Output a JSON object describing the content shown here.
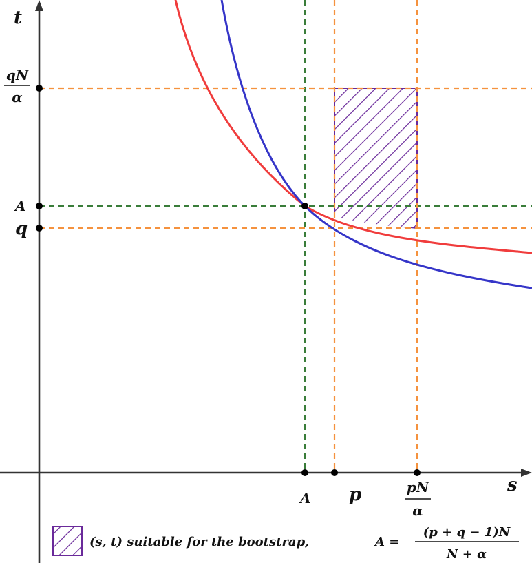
{
  "axes": {
    "x_label": "s",
    "y_label": "t"
  },
  "x_ticks": {
    "A": "A",
    "p": "p",
    "pN_num": "pN",
    "pN_den": "α"
  },
  "y_ticks": {
    "qN_num": "qN",
    "qN_den": "α",
    "A": "A",
    "q": "q"
  },
  "legend": {
    "text": "(s, t) suitable for the bootstrap,",
    "formula_lhs": "A =",
    "formula_num": "(p + q − 1)N",
    "formula_den": "N + α"
  },
  "colors": {
    "red_curve": "#f03c3c",
    "blue_curve": "#3535c8",
    "green_dash": "#3a7d3a",
    "orange_dash": "#f5923e",
    "hatch": "#6a2a9a",
    "axis": "#333333"
  }
}
